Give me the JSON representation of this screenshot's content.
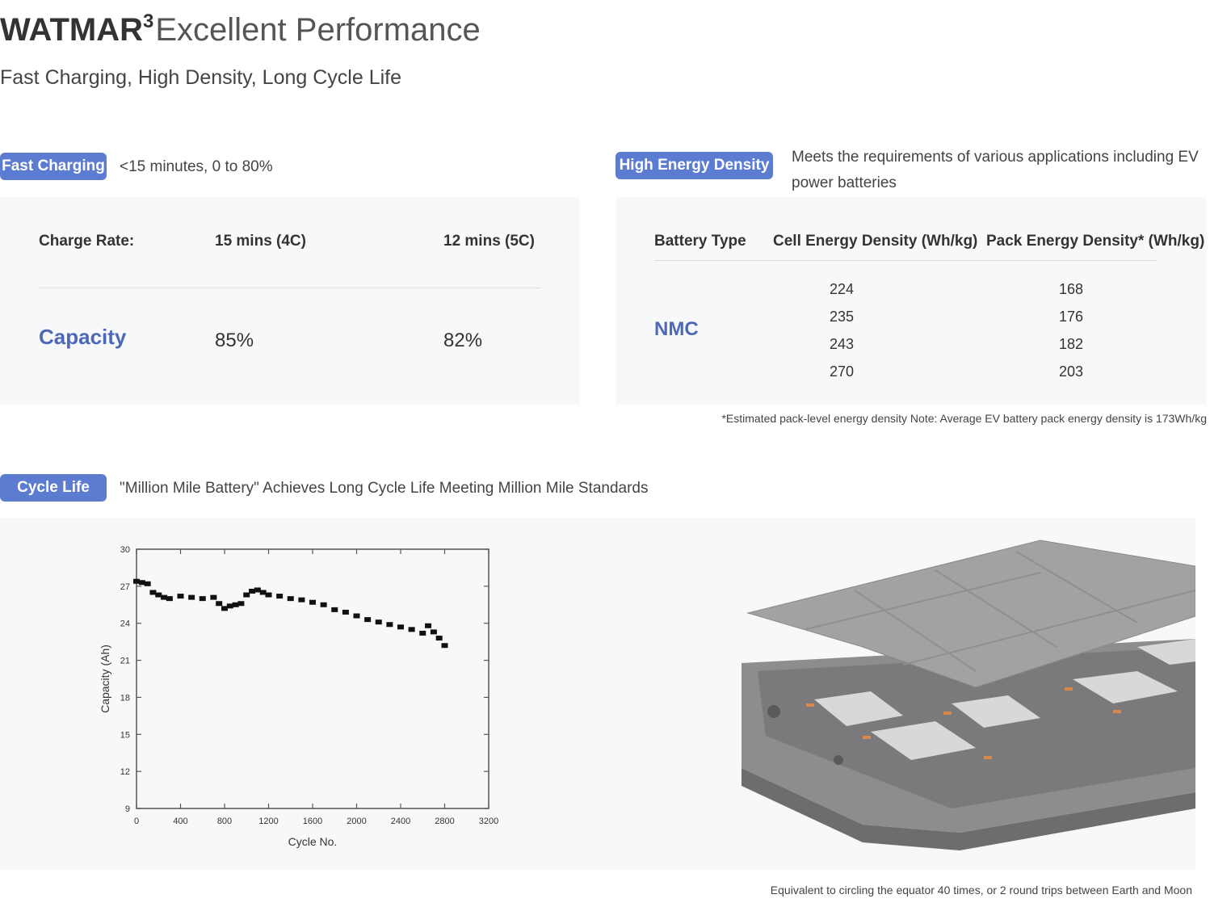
{
  "header": {
    "brand": "WATMAR",
    "superscript": "3",
    "title_rest": "Excellent Performance",
    "subtitle": "Fast Charging, High Density, Long Cycle Life"
  },
  "fast_charging": {
    "badge": "Fast Charging",
    "note": "<15 minutes, 0 to 80%",
    "table": {
      "row_label_header": "Charge Rate:",
      "col1_header": "15 mins (4C)",
      "col2_header": "12 mins (5C)",
      "row_label": "Capacity",
      "col1_value": "85%",
      "col2_value": "82%"
    }
  },
  "energy_density": {
    "badge": "High Energy Density",
    "note_line1": "Meets the requirements of various applications including EV",
    "note_line2": "power batteries",
    "table": {
      "headers": [
        "Battery Type",
        "Cell Energy Density (Wh/kg)",
        "Pack Energy Density* (Wh/kg)"
      ],
      "battery_type": "NMC",
      "cell": [
        "224",
        "235",
        "243",
        "270"
      ],
      "pack": [
        "168",
        "176",
        "182",
        "203"
      ]
    },
    "footnote": "*Estimated pack-level energy density   Note: Average EV battery pack energy density is 173Wh/kg"
  },
  "cycle_life": {
    "badge": "Cycle Life",
    "note": "\"Million Mile Battery\" Achieves Long Cycle Life Meeting Million Mile Standards",
    "caption": "Equivalent to circling the equator 40 times, or 2 round trips between Earth and Moon"
  },
  "colors": {
    "accent": "#5c7cd1",
    "accent_text": "#4d68b8",
    "panel_bg": "#f7f8fa"
  },
  "chart_data": {
    "type": "scatter",
    "title": "",
    "xlabel": "Cycle No.",
    "ylabel": "Capacity (Ah)",
    "xlim": [
      0,
      3200
    ],
    "ylim": [
      9,
      30
    ],
    "xticks": [
      0,
      400,
      800,
      1200,
      1600,
      2000,
      2400,
      2800,
      3200
    ],
    "yticks": [
      9,
      12,
      15,
      18,
      21,
      24,
      27,
      30
    ],
    "grid": false,
    "series": [
      {
        "x": [
          0,
          50,
          100,
          150,
          200,
          250,
          300,
          400,
          500,
          600,
          700,
          750,
          800,
          850,
          900,
          950,
          1000,
          1050,
          1100,
          1150,
          1200,
          1300,
          1400,
          1500,
          1600,
          1700,
          1800,
          1900,
          2000,
          2100,
          2200,
          2300,
          2400,
          2500,
          2600,
          2650,
          2700,
          2750,
          2800
        ],
        "y": [
          27.4,
          27.3,
          27.2,
          26.5,
          26.3,
          26.1,
          26.0,
          26.2,
          26.1,
          26.0,
          26.1,
          25.6,
          25.2,
          25.4,
          25.5,
          25.6,
          26.3,
          26.6,
          26.7,
          26.5,
          26.3,
          26.2,
          26.0,
          25.9,
          25.7,
          25.5,
          25.1,
          24.9,
          24.6,
          24.3,
          24.1,
          23.9,
          23.7,
          23.5,
          23.2,
          23.8,
          23.3,
          22.8,
          22.2
        ]
      }
    ]
  }
}
